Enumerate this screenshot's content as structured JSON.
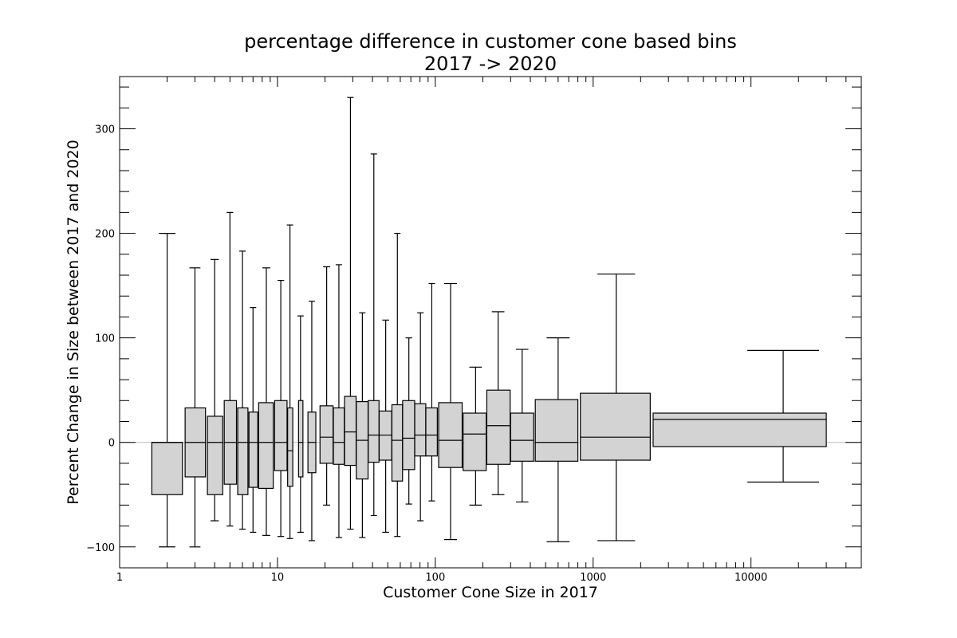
{
  "chart_data": {
    "type": "box",
    "title": "percentage difference in customer cone based bins",
    "subtitle": "2017 -> 2020",
    "xlabel": "Customer Cone Size in 2017",
    "ylabel": "Percent Change in Size between 2017 and 2020",
    "x_scale": "log",
    "xlim": [
      1,
      50000
    ],
    "ylim": [
      -120,
      350
    ],
    "x_ticks": [
      {
        "value": 1,
        "label": "1"
      },
      {
        "value": 10,
        "label": "10"
      },
      {
        "value": 100,
        "label": "100"
      },
      {
        "value": 1000,
        "label": "1000"
      },
      {
        "value": 10000,
        "label": "10000"
      }
    ],
    "y_ticks": [
      {
        "value": -100,
        "label": "−100"
      },
      {
        "value": 0,
        "label": "0"
      },
      {
        "value": 100,
        "label": "100"
      },
      {
        "value": 200,
        "label": "200"
      },
      {
        "value": 300,
        "label": "300"
      }
    ],
    "zero_line": true,
    "box_fill": "#d3d3d3",
    "box_edge": "#000000",
    "boxes": [
      {
        "x_left": 1.6,
        "x_right": 2.5,
        "x_center": 2.0,
        "whisker_low": -100,
        "q1": -50,
        "median": 0,
        "q3": 0,
        "whisker_high": 200
      },
      {
        "x_left": 2.6,
        "x_right": 3.5,
        "x_center": 3.0,
        "whisker_low": -100,
        "q1": -33,
        "median": 0,
        "q3": 33,
        "whisker_high": 167
      },
      {
        "x_left": 3.6,
        "x_right": 4.5,
        "x_center": 4.0,
        "whisker_low": -75,
        "q1": -50,
        "median": 0,
        "q3": 25,
        "whisker_high": 175
      },
      {
        "x_left": 4.6,
        "x_right": 5.5,
        "x_center": 5.0,
        "whisker_low": -80,
        "q1": -40,
        "median": 0,
        "q3": 40,
        "whisker_high": 220
      },
      {
        "x_left": 5.6,
        "x_right": 6.5,
        "x_center": 6.0,
        "whisker_low": -83,
        "q1": -50,
        "median": 0,
        "q3": 33,
        "whisker_high": 183
      },
      {
        "x_left": 6.6,
        "x_right": 7.5,
        "x_center": 7.0,
        "whisker_low": -86,
        "q1": -43,
        "median": 0,
        "q3": 29,
        "whisker_high": 129
      },
      {
        "x_left": 7.6,
        "x_right": 9.4,
        "x_center": 8.5,
        "whisker_low": -89,
        "q1": -44,
        "median": 0,
        "q3": 38,
        "whisker_high": 167
      },
      {
        "x_left": 9.6,
        "x_right": 11.5,
        "x_center": 10.5,
        "whisker_low": -90,
        "q1": -27,
        "median": 0,
        "q3": 40,
        "whisker_high": 155
      },
      {
        "x_left": 11.6,
        "x_right": 12.5,
        "x_center": 12.0,
        "whisker_low": -92,
        "q1": -42,
        "median": -8,
        "q3": 33,
        "whisker_high": 208
      },
      {
        "x_left": 13.6,
        "x_right": 14.5,
        "x_center": 14.0,
        "whisker_low": -86,
        "q1": -33,
        "median": 0,
        "q3": 40,
        "whisker_high": 121
      },
      {
        "x_left": 15.6,
        "x_right": 17.5,
        "x_center": 16.5,
        "whisker_low": -94,
        "q1": -29,
        "median": 0,
        "q3": 29,
        "whisker_high": 135
      },
      {
        "x_left": 18.6,
        "x_right": 22.5,
        "x_center": 20.5,
        "whisker_low": -60,
        "q1": -20,
        "median": 5,
        "q3": 35,
        "whisker_high": 168
      },
      {
        "x_left": 22.6,
        "x_right": 26.5,
        "x_center": 24.5,
        "whisker_low": -91,
        "q1": -21,
        "median": 0,
        "q3": 33,
        "whisker_high": 170
      },
      {
        "x_left": 26.6,
        "x_right": 31.5,
        "x_center": 29.0,
        "whisker_low": -83,
        "q1": -22,
        "median": 10,
        "q3": 44,
        "whisker_high": 330
      },
      {
        "x_left": 31.6,
        "x_right": 37.5,
        "x_center": 34.5,
        "whisker_low": -91,
        "q1": -35,
        "median": 2,
        "q3": 39,
        "whisker_high": 124
      },
      {
        "x_left": 37.6,
        "x_right": 44.0,
        "x_center": 40.8,
        "whisker_low": -70,
        "q1": -19,
        "median": 7,
        "q3": 40,
        "whisker_high": 276
      },
      {
        "x_left": 44.1,
        "x_right": 53.0,
        "x_center": 48.5,
        "whisker_low": -86,
        "q1": -17,
        "median": 7,
        "q3": 30,
        "whisker_high": 117
      },
      {
        "x_left": 53.1,
        "x_right": 62.0,
        "x_center": 57.5,
        "whisker_low": -90,
        "q1": -37,
        "median": 2,
        "q3": 36,
        "whisker_high": 200
      },
      {
        "x_left": 62.1,
        "x_right": 74.0,
        "x_center": 68.0,
        "whisker_low": -59,
        "q1": -26,
        "median": 4,
        "q3": 40,
        "whisker_high": 100
      },
      {
        "x_left": 74.1,
        "x_right": 87.0,
        "x_center": 80.5,
        "whisker_low": -75,
        "q1": -13,
        "median": 7,
        "q3": 37,
        "whisker_high": 124
      },
      {
        "x_left": 87.1,
        "x_right": 103.0,
        "x_center": 95.0,
        "whisker_low": -56,
        "q1": -13,
        "median": 7,
        "q3": 33,
        "whisker_high": 152
      },
      {
        "x_left": 105,
        "x_right": 148,
        "x_center": 125,
        "whisker_low": -93,
        "q1": -24,
        "median": 2,
        "q3": 38,
        "whisker_high": 152
      },
      {
        "x_left": 150,
        "x_right": 210,
        "x_center": 180,
        "whisker_low": -60,
        "q1": -27,
        "median": 8,
        "q3": 28,
        "whisker_high": 72
      },
      {
        "x_left": 212,
        "x_right": 298,
        "x_center": 250,
        "whisker_low": -50,
        "q1": -21,
        "median": 16,
        "q3": 50,
        "whisker_high": 125
      },
      {
        "x_left": 300,
        "x_right": 420,
        "x_center": 355,
        "whisker_low": -57,
        "q1": -18,
        "median": 2,
        "q3": 28,
        "whisker_high": 89
      },
      {
        "x_left": 430,
        "x_right": 800,
        "x_center": 600,
        "whisker_low": -95,
        "q1": -18,
        "median": 0,
        "q3": 41,
        "whisker_high": 100
      },
      {
        "x_left": 830,
        "x_right": 2300,
        "x_center": 1400,
        "whisker_low": -94,
        "q1": -17,
        "median": 5,
        "q3": 47,
        "whisker_high": 161
      },
      {
        "x_left": 2400,
        "x_right": 30000,
        "x_center": 16000,
        "whisker_low": -38,
        "q1": -4,
        "median": 22,
        "q3": 28,
        "whisker_high": 88
      }
    ]
  }
}
